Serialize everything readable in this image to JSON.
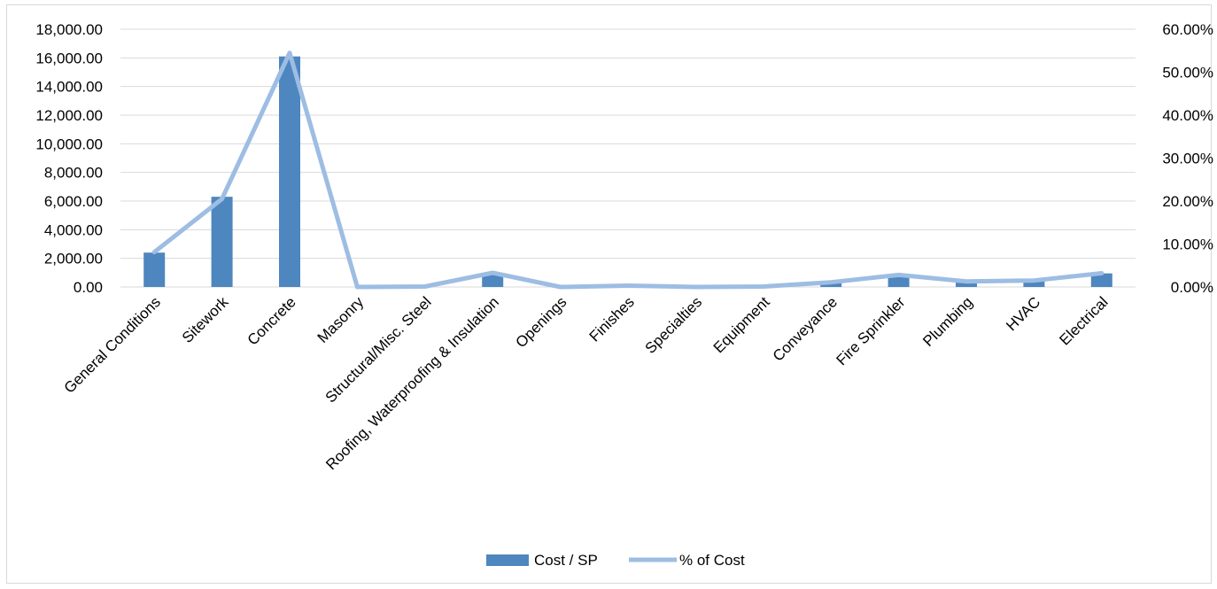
{
  "chart_data": {
    "type": "bar",
    "categories": [
      "General Conditions",
      "Sitework",
      "Concrete",
      "Masonry",
      "Structural/Misc. Steel",
      "Roofing, Waterproofing & Insulation",
      "Openings",
      "Finishes",
      "Specialties",
      "Equipment",
      "Conveyance",
      "Fire Sprinkler",
      "Plumbing",
      "HVAC",
      "Electrical"
    ],
    "series": [
      {
        "name": "Cost / SP",
        "type": "bar",
        "axis": "left",
        "color": "#4e86bf",
        "values": [
          2400,
          6300,
          16100,
          0,
          0,
          900,
          0,
          0,
          0,
          0,
          300,
          800,
          400,
          450,
          950
        ]
      },
      {
        "name": "% of Cost",
        "type": "line",
        "axis": "right",
        "color": "#9dbde3",
        "values": [
          0.081,
          0.205,
          0.545,
          0.0,
          0.001,
          0.033,
          0.0,
          0.003,
          0.0,
          0.001,
          0.011,
          0.028,
          0.013,
          0.015,
          0.032
        ]
      }
    ],
    "y_left": {
      "ticks": [
        "0.00",
        "2,000.00",
        "4,000.00",
        "6,000.00",
        "8,000.00",
        "10,000.00",
        "12,000.00",
        "14,000.00",
        "16,000.00",
        "18,000.00"
      ],
      "ylim": [
        0,
        18000
      ]
    },
    "y_right": {
      "ticks": [
        "0.00%",
        "10.00%",
        "20.00%",
        "30.00%",
        "40.00%",
        "50.00%",
        "60.00%"
      ],
      "ylim": [
        0,
        0.6
      ]
    },
    "grid": true,
    "legend": "bottom-center"
  }
}
